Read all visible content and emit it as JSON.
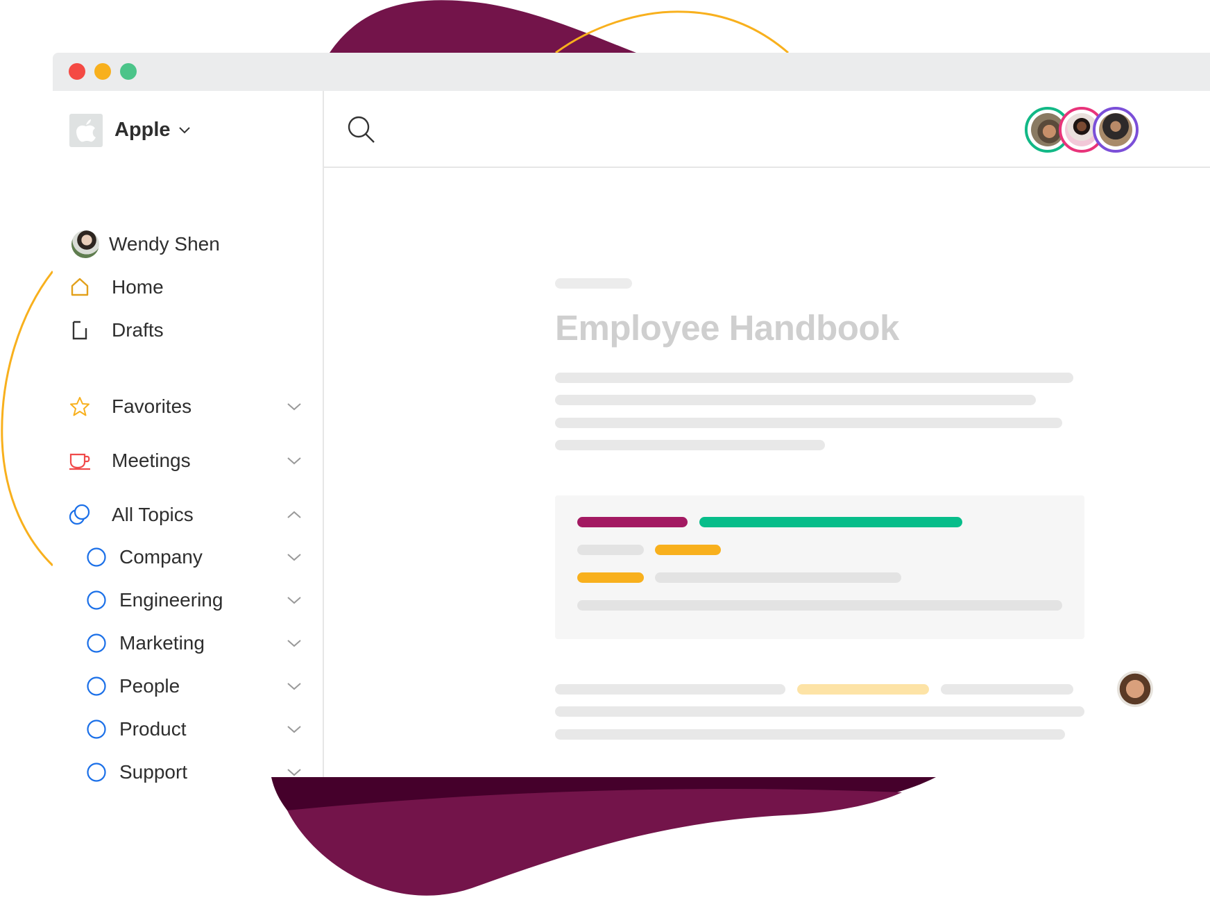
{
  "window": {
    "controls": [
      "close",
      "minimize",
      "maximize"
    ],
    "control_colors": [
      "#f44a44",
      "#f8b01d",
      "#4bc489"
    ]
  },
  "sidebar": {
    "workspace": {
      "name": "Apple",
      "icon": "apple-logo-icon"
    },
    "user": {
      "name": "Wendy Shen"
    },
    "nav": [
      {
        "label": "Home",
        "icon": "home-icon"
      },
      {
        "label": "Drafts",
        "icon": "document-icon"
      }
    ],
    "sections": [
      {
        "label": "Favorites",
        "icon": "star-icon",
        "expanded": false
      },
      {
        "label": "Meetings",
        "icon": "coffee-cup-icon",
        "expanded": false
      },
      {
        "label": "All Topics",
        "icon": "topics-icon",
        "expanded": true
      }
    ],
    "topics": [
      "Company",
      "Engineering",
      "Marketing",
      "People",
      "Product",
      "Support"
    ]
  },
  "header": {
    "search_icon": "search-icon",
    "collaborator_ring_colors": [
      "#12b886",
      "#e8347a",
      "#7b4fd8"
    ],
    "more_icon": "more-horizontal-icon"
  },
  "document": {
    "title": "Employee Handbook"
  },
  "colors": {
    "brand": "#73144a",
    "accent_yellow": "#f8b01d",
    "accent_green": "#07bd8a",
    "accent_magenta": "#a31a62"
  }
}
